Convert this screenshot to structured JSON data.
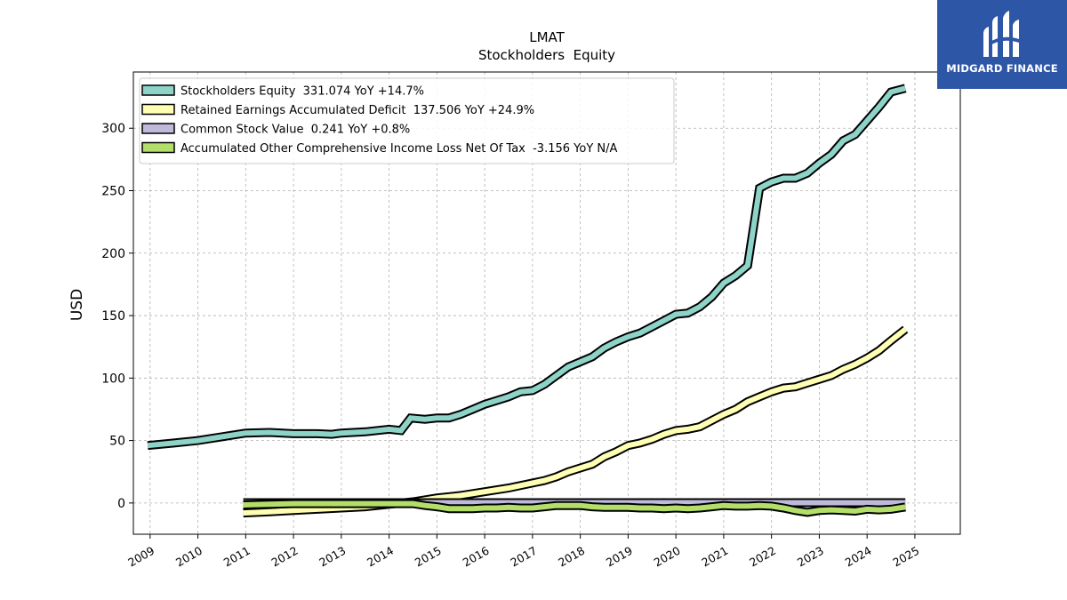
{
  "brand": {
    "name": "MIDGARD FINANCE",
    "background": "#2e56a6"
  },
  "chart_data": {
    "type": "area",
    "title": "LMAT",
    "subtitle": "Stockholders  Equity",
    "ylabel": "USD",
    "xlabel": "",
    "xlim": [
      2008.65,
      2025.95
    ],
    "ylim": [
      -25,
      345
    ],
    "yticks": [
      0,
      50,
      100,
      150,
      200,
      250,
      300
    ],
    "xticks": [
      "2009",
      "2010",
      "2011",
      "2012",
      "2013",
      "2014",
      "2015",
      "2016",
      "2017",
      "2018",
      "2019",
      "2020",
      "2021",
      "2022",
      "2023",
      "2024",
      "2025"
    ],
    "grid": true,
    "legend_position": "top-left",
    "series": [
      {
        "name": "Stockholders Equity  331.074 YoY +14.7%",
        "color": "#8dd3c7",
        "x": [
          2008.95,
          2009.5,
          2010,
          2010.5,
          2011,
          2011.5,
          2012,
          2012.5,
          2012.8,
          2013,
          2013.5,
          2014,
          2014.25,
          2014.45,
          2014.75,
          2015,
          2015.25,
          2015.5,
          2015.75,
          2016,
          2016.25,
          2016.5,
          2016.75,
          2017,
          2017.25,
          2017.5,
          2017.75,
          2018,
          2018.25,
          2018.5,
          2018.75,
          2019,
          2019.25,
          2019.5,
          2019.75,
          2020,
          2020.25,
          2020.5,
          2020.75,
          2021,
          2021.25,
          2021.5,
          2021.75,
          2022,
          2022.25,
          2022.5,
          2022.75,
          2023,
          2023.25,
          2023.5,
          2023.75,
          2024,
          2024.25,
          2024.5,
          2024.8
        ],
        "values": [
          46,
          48,
          50,
          53,
          56,
          56.5,
          55.5,
          55.5,
          55,
          56,
          57,
          59,
          58,
          68,
          67,
          68,
          68,
          71,
          75,
          79,
          82,
          85,
          89,
          90,
          95,
          102,
          109,
          113,
          117,
          124,
          129,
          133,
          136,
          141,
          146,
          151,
          152,
          157,
          165,
          176,
          182,
          190,
          252,
          257,
          260,
          260,
          264,
          272,
          279,
          290,
          295,
          306,
          317,
          329,
          332
        ]
      },
      {
        "name": "Retained Earnings Accumulated Deficit  137.506 YoY +24.9%",
        "color": "#ffffb3",
        "x": [
          2010.95,
          2011.5,
          2012,
          2012.5,
          2013,
          2013.5,
          2014,
          2014.5,
          2015,
          2015.5,
          2016,
          2016.5,
          2017,
          2017.25,
          2017.5,
          2017.75,
          2018,
          2018.25,
          2018.5,
          2018.75,
          2019,
          2019.25,
          2019.5,
          2019.75,
          2020,
          2020.25,
          2020.5,
          2020.75,
          2021,
          2021.25,
          2021.5,
          2021.75,
          2022,
          2022.25,
          2022.5,
          2022.75,
          2023,
          2023.25,
          2023.5,
          2023.75,
          2024,
          2024.25,
          2024.5,
          2024.8
        ],
        "values": [
          -8,
          -7,
          -6,
          -5,
          -4,
          -3,
          -1,
          1,
          4,
          6,
          9,
          12,
          16,
          18,
          21,
          25,
          28,
          31,
          37,
          41,
          46,
          48,
          51,
          55,
          58,
          59,
          61,
          66,
          71,
          75,
          81,
          85,
          89,
          92,
          93,
          96,
          99,
          102,
          107,
          111,
          116,
          122,
          130,
          139
        ]
      },
      {
        "name": "Common Stock Value  0.241 YoY +0.8%",
        "color": "#bebada",
        "x": [
          2010.95,
          2024.8
        ],
        "values": [
          0.24,
          0.24
        ]
      },
      {
        "name": "Accumulated Other Comprehensive Income Loss Net Of Tax  -3.156 YoY N/A",
        "color": "#b3de69",
        "x": [
          2010.95,
          2011.5,
          2012,
          2012.5,
          2013,
          2013.5,
          2014,
          2014.5,
          2014.75,
          2015,
          2015.25,
          2015.5,
          2015.75,
          2016,
          2016.25,
          2016.5,
          2016.75,
          2017,
          2017.25,
          2017.5,
          2017.75,
          2018,
          2018.25,
          2018.5,
          2018.75,
          2019,
          2019.25,
          2019.5,
          2019.75,
          2020,
          2020.25,
          2020.5,
          2020.75,
          2021,
          2021.25,
          2021.5,
          2021.75,
          2022,
          2022.25,
          2022.5,
          2022.75,
          2023,
          2023.25,
          2023.5,
          2023.75,
          2024,
          2024.25,
          2024.5,
          2024.8
        ],
        "values": [
          -1.5,
          -1,
          -0.5,
          -0.5,
          -0.5,
          -0.5,
          -0.5,
          -0.5,
          -2,
          -3,
          -4.5,
          -4.5,
          -4.5,
          -4,
          -4,
          -3.5,
          -4,
          -4,
          -3,
          -2,
          -2,
          -2,
          -3,
          -3.5,
          -3.5,
          -3.5,
          -4,
          -4,
          -4.5,
          -4,
          -4.5,
          -4,
          -3,
          -2,
          -2.5,
          -2.5,
          -2,
          -2.5,
          -4,
          -6,
          -7.5,
          -6,
          -5.5,
          -6,
          -6.5,
          -5,
          -5.5,
          -5,
          -3.2
        ]
      }
    ]
  }
}
